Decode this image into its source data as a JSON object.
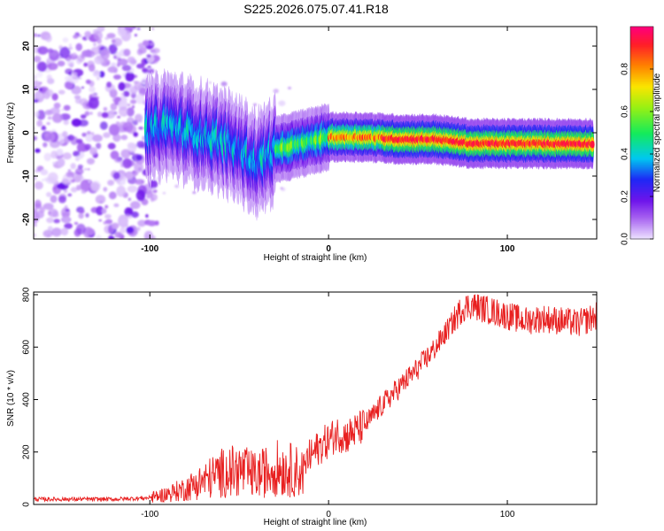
{
  "figure_title": "S225.2026.075.07.41.R18",
  "chart_data": [
    {
      "type": "heatmap",
      "title": "S225.2026.075.07.41.R18",
      "xlabel": "Height of straight line (km)",
      "ylabel": "Frequency (Hz)",
      "xlim": [
        -165,
        150
      ],
      "ylim": [
        -24.5,
        24.5
      ],
      "xticks": [
        -100,
        0,
        100
      ],
      "xtick_labels": [
        "-100",
        "0",
        "100"
      ],
      "yticks": [
        20,
        10,
        0,
        -10,
        -20
      ],
      "ytick_labels": [
        "20",
        "10",
        "0",
        "-10",
        "-20"
      ],
      "colorbar": {
        "label": "Normalized spectral amplitude",
        "range": [
          0,
          1
        ],
        "ticks": [
          0.0,
          0.2,
          0.4,
          0.6,
          0.8
        ],
        "tick_labels": [
          "0.0",
          "0.2",
          "0.4",
          "0.6",
          "0.8"
        ],
        "colormap": "rainbow"
      },
      "ridge": {
        "description_points_height_km": [
          -100,
          -90,
          -80,
          -70,
          -60,
          -50,
          -40,
          -30,
          -20,
          -10,
          0,
          10,
          20,
          40,
          60,
          80,
          100,
          120,
          148
        ],
        "description_points_freq_hz": [
          0.5,
          2,
          0.5,
          -0.5,
          -2,
          -4,
          -7,
          -4,
          -3,
          -2,
          -1,
          -1,
          -1,
          -1.5,
          -1.5,
          -2.5,
          -2.5,
          -2.5,
          -2.5
        ],
        "peak_amplitude": 0.9
      },
      "noise_region_height_km": [
        -165,
        -100
      ]
    },
    {
      "type": "line",
      "title": "",
      "xlabel": "Height of straight line (km)",
      "ylabel": "SNR (10 * v/v)",
      "xlim": [
        -165,
        150
      ],
      "ylim": [
        0,
        810
      ],
      "xticks": [
        -100,
        0,
        100
      ],
      "xtick_labels": [
        "-100",
        "0",
        "100"
      ],
      "yticks": [
        0,
        200,
        400,
        600,
        800
      ],
      "ytick_labels": [
        "0",
        "200",
        "400",
        "600",
        "800"
      ],
      "line_color": "#e82020",
      "series": [
        {
          "name": "SNR",
          "x": [
            -165,
            -140,
            -120,
            -100,
            -90,
            -80,
            -70,
            -60,
            -50,
            -40,
            -30,
            -20,
            -14,
            -12,
            -5,
            5,
            10,
            20,
            30,
            40,
            50,
            60,
            70,
            75,
            80,
            90,
            100,
            110,
            120,
            130,
            140,
            150
          ],
          "y": [
            20,
            20,
            20,
            25,
            40,
            60,
            90,
            120,
            130,
            110,
            140,
            130,
            120,
            170,
            220,
            270,
            260,
            300,
            380,
            450,
            520,
            600,
            700,
            750,
            760,
            740,
            720,
            700,
            710,
            700,
            690,
            720
          ]
        }
      ]
    }
  ]
}
